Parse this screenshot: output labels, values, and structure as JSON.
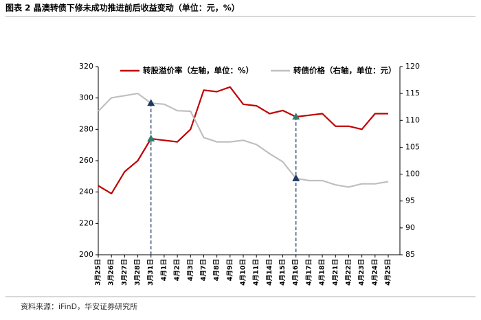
{
  "chart_data": {
    "type": "line",
    "title": "图表 2 晶澳转债下修未成功推进前后收益变动（单位：元，%）",
    "source": "资料来源：iFinD，华安证券研究所",
    "categories": [
      "3月25日",
      "3月26日",
      "3月27日",
      "3月28日",
      "3月31日",
      "4月1日",
      "4月2日",
      "4月3日",
      "4月7日",
      "4月8日",
      "4月9日",
      "4月10日",
      "4月11日",
      "4月14日",
      "4月15日",
      "4月16日",
      "4月17日",
      "4月18日",
      "4月21日",
      "4月22日",
      "4月23日",
      "4月24日",
      "4月25日"
    ],
    "series": [
      {
        "name": "转股溢价率（左轴，单位：%）",
        "color": "#c00000",
        "marker_color": "#2e7d6f",
        "values": [
          244,
          239,
          253,
          260,
          274,
          273,
          272,
          280,
          305,
          304,
          307,
          296,
          295,
          290,
          292,
          288,
          289,
          290,
          282,
          282,
          280,
          290,
          290
        ]
      },
      {
        "name": "转债价格（右轴，单位：元）",
        "color": "#bfbfbf",
        "axis": "y2",
        "marker_color": "#1f3864",
        "values": [
          111.7,
          114.2,
          114.6,
          115.0,
          113.2,
          113.0,
          111.8,
          111.7,
          106.8,
          106.0,
          106.0,
          106.3,
          105.5,
          103.8,
          102.3,
          99.2,
          98.8,
          98.8,
          98.0,
          97.6,
          98.2,
          98.2,
          98.6
        ]
      }
    ],
    "highlight": [
      "3月31日",
      "4月16日"
    ],
    "ylim": [
      200,
      320
    ],
    "yticks": [
      200,
      220,
      240,
      260,
      280,
      300,
      320
    ],
    "y2lim": [
      85,
      120
    ],
    "y2ticks": [
      85,
      90,
      95,
      100,
      105,
      110,
      115,
      120
    ],
    "grid": false
  }
}
